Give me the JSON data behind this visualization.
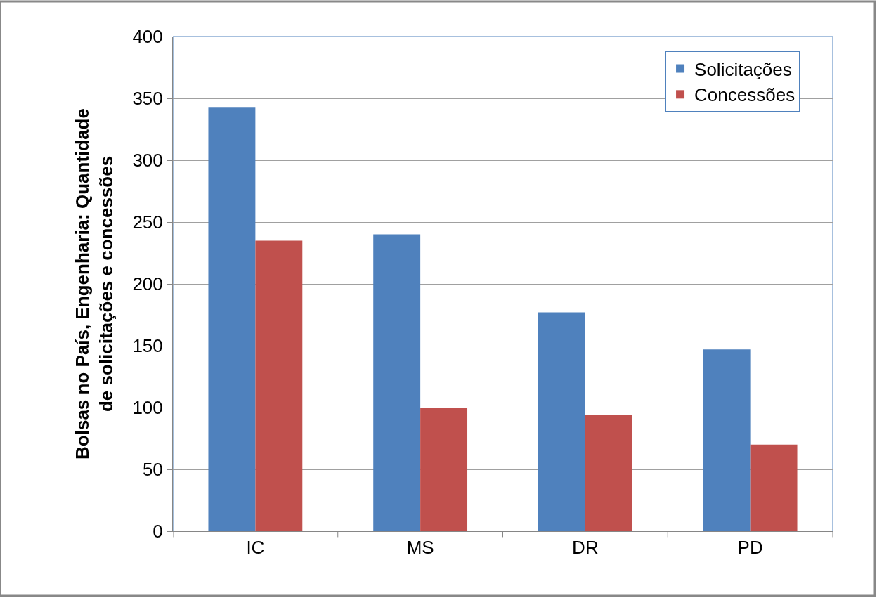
{
  "chart_data": {
    "type": "bar",
    "ylabel": "Bolsas no País, Engenharia: Quantidade\nde solicitações e concessões",
    "categories": [
      "IC",
      "MS",
      "DR",
      "PD"
    ],
    "series": [
      {
        "name": "Solicitações",
        "color": "#4f81bd",
        "values": [
          343,
          240,
          177,
          147
        ]
      },
      {
        "name": "Concessões",
        "color": "#c0504d",
        "values": [
          235,
          100,
          94,
          70
        ]
      }
    ],
    "ylim": [
      0,
      400
    ],
    "yticks": [
      0,
      50,
      100,
      150,
      200,
      250,
      300,
      350,
      400
    ],
    "grid": "y",
    "legend": "top right"
  }
}
